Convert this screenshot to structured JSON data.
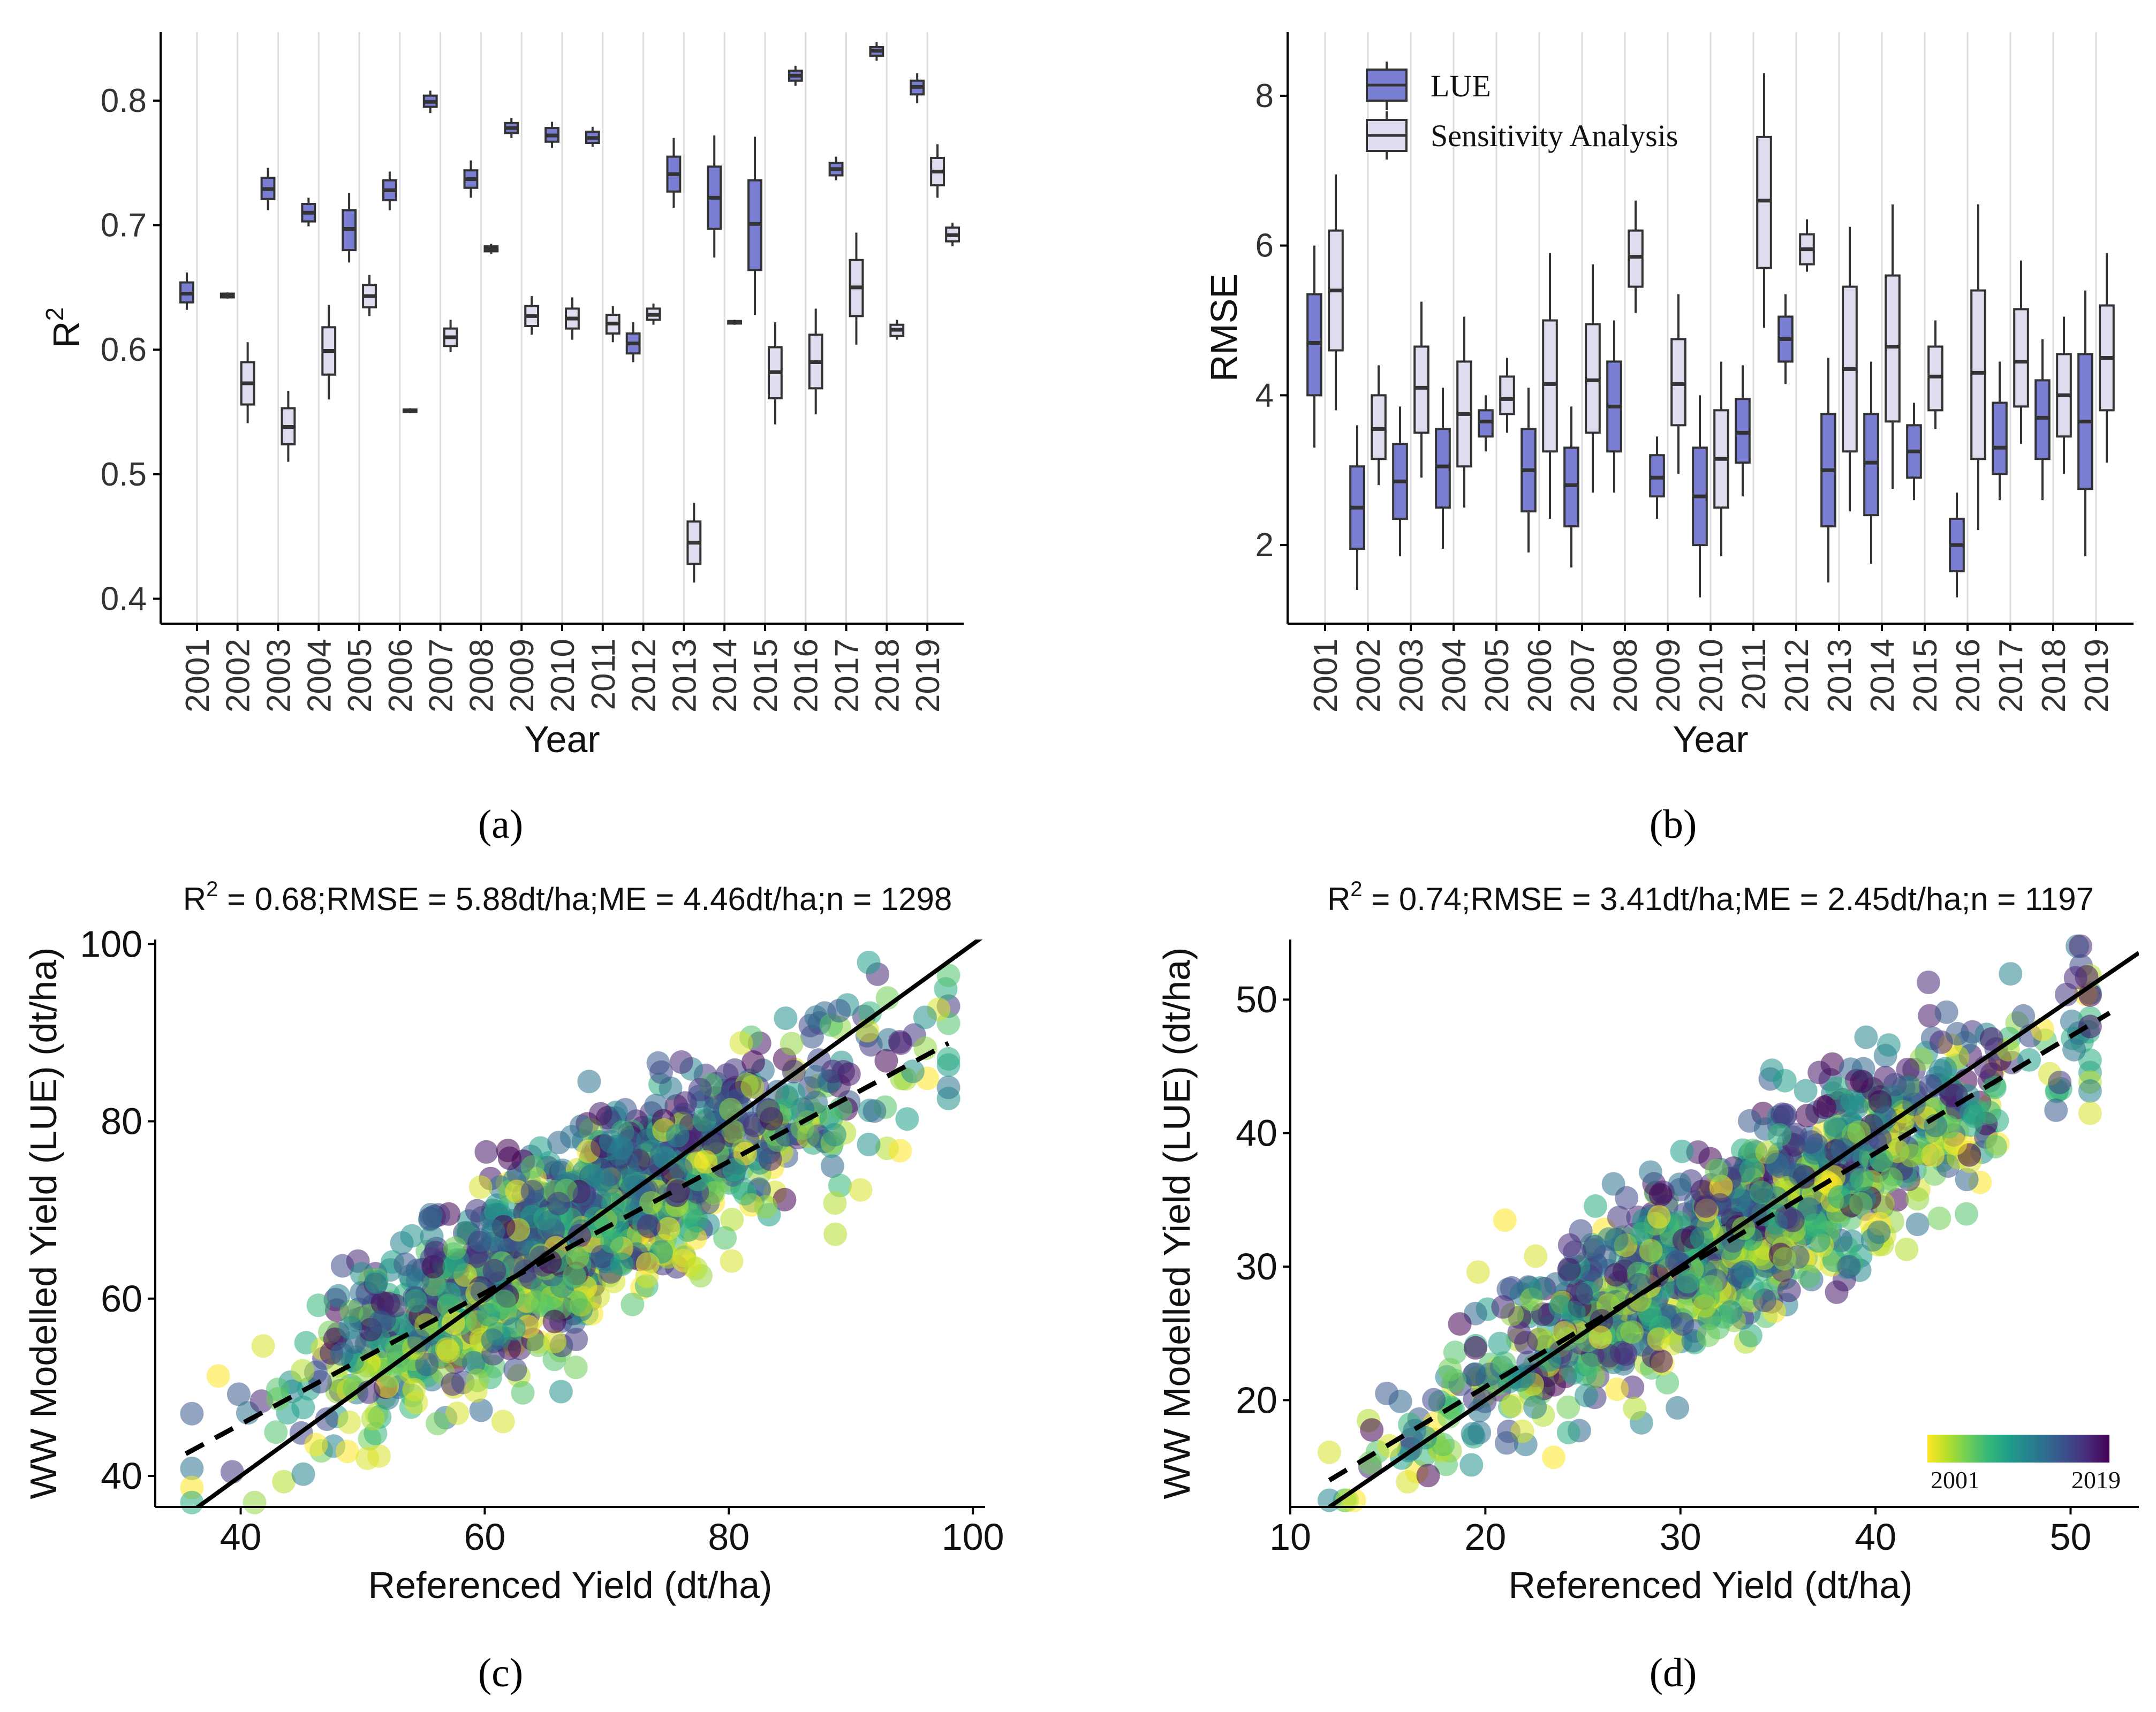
{
  "colors": {
    "lue": "#7b7fd4",
    "sensitivity": "#dedcef",
    "box_stroke": "#333333",
    "grid": "#dddddd",
    "viridis": [
      "#fde725",
      "#b5de2b",
      "#6ece58",
      "#35b779",
      "#1f9e89",
      "#26828e",
      "#31688e",
      "#3e4989",
      "#482878",
      "#440154"
    ]
  },
  "chart_data": [
    {
      "id": "a",
      "type": "box",
      "panel_label": "(a)",
      "xlabel": "Year",
      "ylabel": "R",
      "ylabel_sup": "2",
      "ylim": [
        0.38,
        0.855
      ],
      "yticks": [
        0.4,
        0.5,
        0.6,
        0.7,
        0.8
      ],
      "ytick_labels": [
        "0.4",
        "0.5",
        "0.6",
        "0.7",
        "0.8"
      ],
      "categories": [
        "2001",
        "2002",
        "2003",
        "2004",
        "2005",
        "2006",
        "2007",
        "2008",
        "2009",
        "2010",
        "2011",
        "2012",
        "2013",
        "2014",
        "2015",
        "2016",
        "2017",
        "2018",
        "2019"
      ],
      "series": [
        {
          "name": "LUE",
          "boxes": [
            {
              "x": "2001",
              "lo": 0.632,
              "q1": 0.638,
              "med": 0.645,
              "q3": 0.654,
              "hi": 0.662
            },
            {
              "x": "2002",
              "lo": 0.641,
              "q1": 0.642,
              "med": 0.643,
              "q3": 0.645,
              "hi": 0.646
            },
            {
              "x": "2003",
              "lo": 0.712,
              "q1": 0.721,
              "med": 0.729,
              "q3": 0.738,
              "hi": 0.746
            },
            {
              "x": "2004",
              "lo": 0.699,
              "q1": 0.703,
              "med": 0.71,
              "q3": 0.717,
              "hi": 0.722
            },
            {
              "x": "2005",
              "lo": 0.67,
              "q1": 0.68,
              "med": 0.697,
              "q3": 0.712,
              "hi": 0.726
            },
            {
              "x": "2006",
              "lo": 0.712,
              "q1": 0.72,
              "med": 0.728,
              "q3": 0.736,
              "hi": 0.743
            },
            {
              "x": "2007",
              "lo": 0.79,
              "q1": 0.795,
              "med": 0.799,
              "q3": 0.804,
              "hi": 0.808
            },
            {
              "x": "2008",
              "lo": 0.722,
              "q1": 0.73,
              "med": 0.737,
              "q3": 0.744,
              "hi": 0.752
            },
            {
              "x": "2009",
              "lo": 0.77,
              "q1": 0.774,
              "med": 0.778,
              "q3": 0.782,
              "hi": 0.786
            },
            {
              "x": "2010",
              "lo": 0.762,
              "q1": 0.767,
              "med": 0.772,
              "q3": 0.778,
              "hi": 0.783
            },
            {
              "x": "2011",
              "lo": 0.763,
              "q1": 0.766,
              "med": 0.77,
              "q3": 0.775,
              "hi": 0.779
            },
            {
              "x": "2012",
              "lo": 0.59,
              "q1": 0.597,
              "med": 0.605,
              "q3": 0.613,
              "hi": 0.622
            },
            {
              "x": "2013",
              "lo": 0.714,
              "q1": 0.727,
              "med": 0.741,
              "q3": 0.755,
              "hi": 0.77
            },
            {
              "x": "2014",
              "lo": 0.674,
              "q1": 0.697,
              "med": 0.722,
              "q3": 0.747,
              "hi": 0.772
            },
            {
              "x": "2015",
              "lo": 0.628,
              "q1": 0.664,
              "med": 0.701,
              "q3": 0.736,
              "hi": 0.771
            },
            {
              "x": "2016",
              "lo": 0.812,
              "q1": 0.816,
              "med": 0.82,
              "q3": 0.824,
              "hi": 0.828
            },
            {
              "x": "2017",
              "lo": 0.736,
              "q1": 0.74,
              "med": 0.745,
              "q3": 0.75,
              "hi": 0.755
            },
            {
              "x": "2018",
              "lo": 0.832,
              "q1": 0.836,
              "med": 0.84,
              "q3": 0.843,
              "hi": 0.847
            },
            {
              "x": "2019",
              "lo": 0.798,
              "q1": 0.805,
              "med": 0.811,
              "q3": 0.816,
              "hi": 0.822
            }
          ]
        },
        {
          "name": "Sensitivity Analysis",
          "boxes": [
            {
              "x": "2001",
              "lo": null,
              "q1": null,
              "med": null,
              "q3": null,
              "hi": null
            },
            {
              "x": "2002",
              "lo": 0.541,
              "q1": 0.556,
              "med": 0.573,
              "q3": 0.59,
              "hi": 0.606
            },
            {
              "x": "2003",
              "lo": 0.51,
              "q1": 0.524,
              "med": 0.538,
              "q3": 0.553,
              "hi": 0.567
            },
            {
              "x": "2004",
              "lo": 0.56,
              "q1": 0.58,
              "med": 0.599,
              "q3": 0.618,
              "hi": 0.636
            },
            {
              "x": "2005",
              "lo": 0.627,
              "q1": 0.634,
              "med": 0.643,
              "q3": 0.652,
              "hi": 0.66
            },
            {
              "x": "2006",
              "lo": 0.549,
              "q1": 0.55,
              "med": 0.551,
              "q3": 0.552,
              "hi": 0.553
            },
            {
              "x": "2007",
              "lo": 0.598,
              "q1": 0.603,
              "med": 0.61,
              "q3": 0.617,
              "hi": 0.624
            },
            {
              "x": "2008",
              "lo": 0.677,
              "q1": 0.679,
              "med": 0.681,
              "q3": 0.683,
              "hi": 0.685
            },
            {
              "x": "2009",
              "lo": 0.612,
              "q1": 0.619,
              "med": 0.627,
              "q3": 0.635,
              "hi": 0.643
            },
            {
              "x": "2010",
              "lo": 0.608,
              "q1": 0.617,
              "med": 0.625,
              "q3": 0.633,
              "hi": 0.642
            },
            {
              "x": "2011",
              "lo": 0.606,
              "q1": 0.613,
              "med": 0.621,
              "q3": 0.628,
              "hi": 0.635
            },
            {
              "x": "2012",
              "lo": 0.62,
              "q1": 0.624,
              "med": 0.628,
              "q3": 0.633,
              "hi": 0.637
            },
            {
              "x": "2013",
              "lo": 0.413,
              "q1": 0.428,
              "med": 0.445,
              "q3": 0.462,
              "hi": 0.477
            },
            {
              "x": "2014",
              "lo": 0.62,
              "q1": 0.621,
              "med": 0.622,
              "q3": 0.623,
              "hi": 0.624
            },
            {
              "x": "2015",
              "lo": 0.54,
              "q1": 0.561,
              "med": 0.582,
              "q3": 0.602,
              "hi": 0.622
            },
            {
              "x": "2016",
              "lo": 0.548,
              "q1": 0.569,
              "med": 0.59,
              "q3": 0.612,
              "hi": 0.633
            },
            {
              "x": "2017",
              "lo": 0.604,
              "q1": 0.627,
              "med": 0.65,
              "q3": 0.672,
              "hi": 0.694
            },
            {
              "x": "2018",
              "lo": 0.608,
              "q1": 0.611,
              "med": 0.616,
              "q3": 0.62,
              "hi": 0.624
            },
            {
              "x": "2019",
              "lo": 0.722,
              "q1": 0.732,
              "med": 0.743,
              "q3": 0.754,
              "hi": 0.765
            }
          ]
        }
      ],
      "single_boxes": [
        {
          "x": "2001",
          "series": "LUE"
        }
      ],
      "extra_box": {
        "x": "2019",
        "series": "Sensitivity Analysis",
        "lo": 0.683,
        "q1": 0.687,
        "med": 0.692,
        "q3": 0.698,
        "hi": 0.702
      }
    },
    {
      "id": "b",
      "type": "box",
      "panel_label": "(b)",
      "xlabel": "Year",
      "ylabel": "RMSE",
      "ylim": [
        0.95,
        8.85
      ],
      "yticks": [
        2,
        4,
        6,
        8
      ],
      "ytick_labels": [
        "2",
        "4",
        "6",
        "8"
      ],
      "categories": [
        "2001",
        "2002",
        "2003",
        "2004",
        "2005",
        "2006",
        "2007",
        "2008",
        "2009",
        "2010",
        "2011",
        "2012",
        "2013",
        "2014",
        "2015",
        "2016",
        "2017",
        "2018",
        "2019"
      ],
      "legend": [
        "LUE",
        "Sensitivity Analysis"
      ],
      "series": [
        {
          "name": "LUE",
          "boxes": [
            {
              "x": "2001",
              "lo": 3.3,
              "q1": 4.0,
              "med": 4.7,
              "q3": 5.35,
              "hi": 6.0
            },
            {
              "x": "2002",
              "lo": 1.4,
              "q1": 1.95,
              "med": 2.5,
              "q3": 3.05,
              "hi": 3.6
            },
            {
              "x": "2003",
              "lo": 1.85,
              "q1": 2.35,
              "med": 2.85,
              "q3": 3.35,
              "hi": 3.85
            },
            {
              "x": "2004",
              "lo": 1.95,
              "q1": 2.5,
              "med": 3.05,
              "q3": 3.55,
              "hi": 4.1
            },
            {
              "x": "2005",
              "lo": 3.25,
              "q1": 3.45,
              "med": 3.65,
              "q3": 3.8,
              "hi": 4.0
            },
            {
              "x": "2006",
              "lo": 1.9,
              "q1": 2.45,
              "med": 3.0,
              "q3": 3.55,
              "hi": 4.1
            },
            {
              "x": "2007",
              "lo": 1.7,
              "q1": 2.25,
              "med": 2.8,
              "q3": 3.3,
              "hi": 3.85
            },
            {
              "x": "2008",
              "lo": 2.7,
              "q1": 3.25,
              "med": 3.85,
              "q3": 4.45,
              "hi": 5.0
            },
            {
              "x": "2009",
              "lo": 2.35,
              "q1": 2.65,
              "med": 2.9,
              "q3": 3.2,
              "hi": 3.45
            },
            {
              "x": "2010",
              "lo": 1.3,
              "q1": 2.0,
              "med": 2.65,
              "q3": 3.3,
              "hi": 4.0
            },
            {
              "x": "2011",
              "lo": 2.65,
              "q1": 3.1,
              "med": 3.5,
              "q3": 3.95,
              "hi": 4.4
            },
            {
              "x": "2012",
              "lo": 4.15,
              "q1": 4.45,
              "med": 4.75,
              "q3": 5.05,
              "hi": 5.35
            },
            {
              "x": "2013",
              "lo": 1.5,
              "q1": 2.25,
              "med": 3.0,
              "q3": 3.75,
              "hi": 4.5
            },
            {
              "x": "2014",
              "lo": 1.75,
              "q1": 2.4,
              "med": 3.1,
              "q3": 3.75,
              "hi": 4.45
            },
            {
              "x": "2015",
              "lo": 2.6,
              "q1": 2.9,
              "med": 3.25,
              "q3": 3.6,
              "hi": 3.9
            },
            {
              "x": "2016",
              "lo": 1.3,
              "q1": 1.65,
              "med": 2.0,
              "q3": 2.35,
              "hi": 2.7
            },
            {
              "x": "2017",
              "lo": 2.6,
              "q1": 2.95,
              "med": 3.3,
              "q3": 3.9,
              "hi": 4.45
            },
            {
              "x": "2018",
              "lo": 2.6,
              "q1": 3.15,
              "med": 3.7,
              "q3": 4.2,
              "hi": 4.75
            },
            {
              "x": "2019",
              "lo": 1.85,
              "q1": 2.75,
              "med": 3.65,
              "q3": 4.55,
              "hi": 5.4
            }
          ]
        },
        {
          "name": "Sensitivity Analysis",
          "boxes": [
            {
              "x": "2001",
              "lo": 3.8,
              "q1": 4.6,
              "med": 5.4,
              "q3": 6.2,
              "hi": 6.95
            },
            {
              "x": "2002",
              "lo": 2.8,
              "q1": 3.15,
              "med": 3.55,
              "q3": 4.0,
              "hi": 4.4
            },
            {
              "x": "2003",
              "lo": 2.9,
              "q1": 3.5,
              "med": 4.1,
              "q3": 4.65,
              "hi": 5.25
            },
            {
              "x": "2004",
              "lo": 2.5,
              "q1": 3.05,
              "med": 3.75,
              "q3": 4.45,
              "hi": 5.05
            },
            {
              "x": "2005",
              "lo": 3.5,
              "q1": 3.75,
              "med": 3.95,
              "q3": 4.25,
              "hi": 4.5
            },
            {
              "x": "2006",
              "lo": 2.35,
              "q1": 3.25,
              "med": 4.15,
              "q3": 5.0,
              "hi": 5.9
            },
            {
              "x": "2007",
              "lo": 2.7,
              "q1": 3.5,
              "med": 4.2,
              "q3": 4.95,
              "hi": 5.75
            },
            {
              "x": "2008",
              "lo": 5.1,
              "q1": 5.45,
              "med": 5.85,
              "q3": 6.2,
              "hi": 6.6
            },
            {
              "x": "2009",
              "lo": 2.95,
              "q1": 3.6,
              "med": 4.15,
              "q3": 4.75,
              "hi": 5.35
            },
            {
              "x": "2010",
              "lo": 1.85,
              "q1": 2.5,
              "med": 3.15,
              "q3": 3.8,
              "hi": 4.45
            },
            {
              "x": "2011",
              "lo": 4.9,
              "q1": 5.7,
              "med": 6.6,
              "q3": 7.45,
              "hi": 8.3
            },
            {
              "x": "2012",
              "lo": 5.65,
              "q1": 5.75,
              "med": 5.95,
              "q3": 6.15,
              "hi": 6.35
            },
            {
              "x": "2013",
              "lo": 2.45,
              "q1": 3.25,
              "med": 4.35,
              "q3": 5.45,
              "hi": 6.25
            },
            {
              "x": "2014",
              "lo": 2.75,
              "q1": 3.65,
              "med": 4.65,
              "q3": 5.6,
              "hi": 6.55
            },
            {
              "x": "2015",
              "lo": 3.55,
              "q1": 3.8,
              "med": 4.25,
              "q3": 4.65,
              "hi": 5.0
            },
            {
              "x": "2016",
              "lo": 2.2,
              "q1": 3.15,
              "med": 4.3,
              "q3": 5.4,
              "hi": 6.55
            },
            {
              "x": "2017",
              "lo": 3.35,
              "q1": 3.85,
              "med": 4.45,
              "q3": 5.15,
              "hi": 5.8
            },
            {
              "x": "2018",
              "lo": 2.95,
              "q1": 3.45,
              "med": 4.0,
              "q3": 4.55,
              "hi": 5.05
            },
            {
              "x": "2019",
              "lo": 3.1,
              "q1": 3.8,
              "med": 4.5,
              "q3": 5.2,
              "hi": 5.9
            }
          ]
        }
      ]
    },
    {
      "id": "c",
      "type": "scatter",
      "panel_label": "(c)",
      "stat_prefix": "R",
      "stat_sup": "2",
      "stat_text": " = 0.68;RMSE = 5.88dt/ha;ME = 4.46dt/ha;n = 1298",
      "xlabel": "Referenced Yield (dt/ha)",
      "ylabel": "WW Modelled Yield (LUE) (dt/ha)",
      "xlim": [
        33,
        101
      ],
      "ylim": [
        36.5,
        100.5
      ],
      "xticks": [
        40,
        60,
        80,
        100
      ],
      "xtick_labels": [
        "40",
        "60",
        "80",
        "100"
      ],
      "yticks": [
        40,
        60,
        80,
        100
      ],
      "ytick_labels": [
        "40",
        "60",
        "80",
        "100"
      ],
      "identity_line": {
        "x": [
          33,
          101
        ],
        "y": [
          33,
          101
        ]
      },
      "fit_line": {
        "x": [
          35.5,
          98
        ],
        "y": [
          42.5,
          88.8
        ]
      },
      "n": 1298,
      "point_generator": {
        "x_center": 68,
        "x_sd": 11.5,
        "x_range": [
          36,
          98
        ],
        "slope": 0.76,
        "intercept": 16,
        "noise_sd": 5.2,
        "seed": 7
      }
    },
    {
      "id": "d",
      "type": "scatter",
      "panel_label": "(d)",
      "stat_prefix": "R",
      "stat_sup": "2",
      "stat_text": " = 0.74;RMSE = 3.41dt/ha;ME = 2.45dt/ha;n = 1197",
      "xlabel": "Referenced Yield (dt/ha)",
      "ylabel": "WW Modelled Yield (LUE) (dt/ha)",
      "xlim": [
        10,
        53.5
      ],
      "ylim": [
        12,
        54.5
      ],
      "xticks": [
        10,
        20,
        30,
        40,
        50
      ],
      "xtick_labels": [
        "10",
        "20",
        "30",
        "40",
        "50"
      ],
      "yticks": [
        20,
        30,
        40,
        50
      ],
      "ytick_labels": [
        "20",
        "30",
        "40",
        "50"
      ],
      "identity_line": {
        "x": [
          12,
          53.5
        ],
        "y": [
          12,
          53.5
        ]
      },
      "fit_line": {
        "x": [
          12,
          52
        ],
        "y": [
          14,
          49
        ]
      },
      "n": 1197,
      "point_generator": {
        "x_center": 33,
        "x_sd": 7.5,
        "x_range": [
          12,
          51
        ],
        "slope": 0.87,
        "intercept": 4.0,
        "noise_sd": 3.4,
        "seed": 11
      },
      "colorbar": {
        "min_label": "2001",
        "max_label": "2019",
        "min": 2001,
        "max": 2019
      }
    }
  ]
}
